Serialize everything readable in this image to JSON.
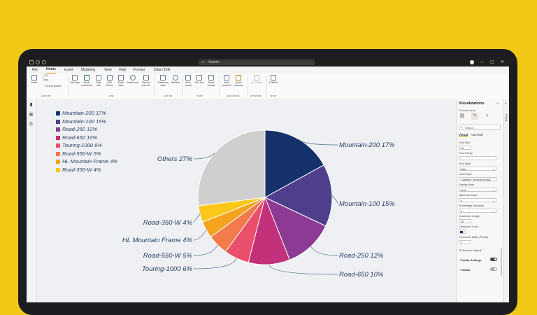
{
  "titlebar": {
    "search_placeholder": "Search",
    "minimize": "—",
    "restore": "▢",
    "close": "✕"
  },
  "menu": {
    "items": [
      "File",
      "Home",
      "Insert",
      "Modeling",
      "View",
      "Help",
      "Format",
      "Data / Drill"
    ],
    "active_index": 1
  },
  "ribbon": {
    "buttons": [
      "Paste",
      "Cut",
      "Copy",
      "Format painter",
      "Get data",
      "Excel workbook",
      "Data hub",
      "SQL Server",
      "Enter data",
      "Dataverse",
      "Recent sources",
      "Transform data",
      "Refresh",
      "New visual",
      "Text box",
      "More visuals",
      "New measure",
      "Quick measure",
      "Sensitivity",
      "Publish"
    ],
    "groups": [
      "Clipboard",
      "Data",
      "Queries",
      "Insert",
      "Calculations",
      "Sensitivity",
      "Share"
    ]
  },
  "chart_data": {
    "type": "pie",
    "start_angle_deg": 0,
    "slices": [
      {
        "label": "Mountain-200",
        "pct": 17,
        "color": "#14316b"
      },
      {
        "label": "Mountain-100",
        "pct": 15,
        "color": "#4f3e8c"
      },
      {
        "label": "Road-250",
        "pct": 12,
        "color": "#8c3a93"
      },
      {
        "label": "Road-650",
        "pct": 10,
        "color": "#c2317a"
      },
      {
        "label": "Touring-1000",
        "pct": 6,
        "color": "#ea4f6b"
      },
      {
        "label": "Road-550-W",
        "pct": 5,
        "color": "#f37a4a"
      },
      {
        "label": "HL Mountain Frame",
        "pct": 4,
        "color": "#f6a31e"
      },
      {
        "label": "Road-350-W",
        "pct": 4,
        "color": "#fbc81a"
      },
      {
        "label": "Others",
        "pct": 27,
        "color": "#cfcfcf"
      }
    ],
    "legend": {
      "position": "top-left",
      "entries": [
        {
          "label": "Mountain-200 17%",
          "color": "#14316b"
        },
        {
          "label": "Mountain-100 15%",
          "color": "#4f3e8c"
        },
        {
          "label": "Road-250 12%",
          "color": "#8c3a93"
        },
        {
          "label": "Road-650 10%",
          "color": "#c2317a"
        },
        {
          "label": "Touring-1000 6%",
          "color": "#ea4f6b"
        },
        {
          "label": "Road-550-W 5%",
          "color": "#f37a4a"
        },
        {
          "label": "HL Mountain Frame 4%",
          "color": "#f6a31e"
        },
        {
          "label": "Road-350-W 4%",
          "color": "#fbc81a"
        }
      ]
    },
    "data_labels": [
      "Mountain-200 17%",
      "Mountain-100 15%",
      "Road-250 12%",
      "Road-650 10%",
      "Touring-1000 6%",
      "Road-550-W 5%",
      "HL Mountain Frame 4%",
      "Road-350-W 4%",
      "Others 27%"
    ],
    "label_color": "#2c3e66"
  },
  "visualizations": {
    "title": "Visualizations",
    "subtitle": "Format visual",
    "search_placeholder": "Search",
    "tabs": [
      "Visual",
      "General"
    ],
    "active_tab": 0,
    "fields_label": "Fields",
    "properties": {
      "font_size_label": "Font Size",
      "font_size_value": "20",
      "font_family_label": "Font Family",
      "font_family_value": "",
      "font_style_label": "Font Style",
      "font_style_value": "Italic",
      "label_style_label": "Label Style",
      "label_style_value": "Category, percent of total",
      "display_units_label": "Display Units",
      "display_units_value": "Auto",
      "value_decimals_label": "Value Decimals",
      "value_decimals_value": "0",
      "percentage_decimals_label": "Percentage Decimals",
      "percentage_decimals_value": "0",
      "connector_length_label": "Connector Length",
      "connector_length_value": "20",
      "connector_color_label": "Connector Color",
      "connector_width_label": "Connector Width (Pixels)",
      "connector_width_value": "1",
      "reset_label": "Reset to default",
      "tooltip_settings_label": "Tooltip Settings",
      "toolbar_label": "Toolbar"
    }
  }
}
